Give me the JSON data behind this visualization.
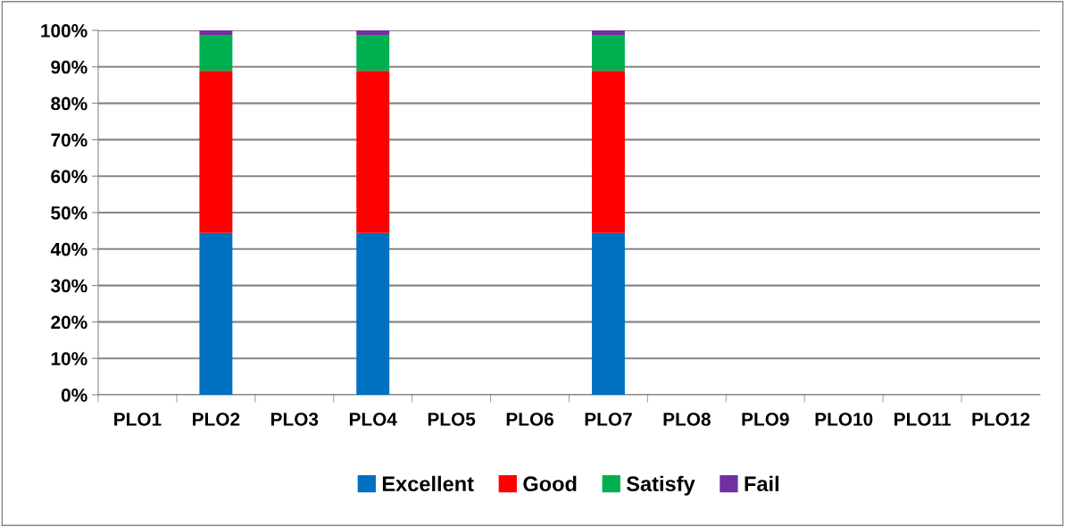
{
  "chart_data": {
    "type": "bar",
    "stacked": true,
    "categories": [
      "PLO1",
      "PLO2",
      "PLO3",
      "PLO4",
      "PLO5",
      "PLO6",
      "PLO7",
      "PLO8",
      "PLO9",
      "PLO10",
      "PLO11",
      "PLO12"
    ],
    "series": [
      {
        "name": "Excellent",
        "color": "#0070c0",
        "values": [
          null,
          44.4,
          null,
          44.4,
          null,
          null,
          44.4,
          null,
          null,
          null,
          null,
          null
        ]
      },
      {
        "name": "Good",
        "color": "#ff0000",
        "values": [
          null,
          44.5,
          null,
          44.5,
          null,
          null,
          44.5,
          null,
          null,
          null,
          null,
          null
        ]
      },
      {
        "name": "Satisfy",
        "color": "#00b050",
        "values": [
          null,
          9.7,
          null,
          9.7,
          null,
          null,
          9.7,
          null,
          null,
          null,
          null,
          null
        ]
      },
      {
        "name": "Fail",
        "color": "#7030a0",
        "values": [
          null,
          1.4,
          null,
          1.4,
          null,
          null,
          1.4,
          null,
          null,
          null,
          null,
          null
        ]
      }
    ],
    "ylim": [
      0,
      100
    ],
    "yticks": [
      {
        "value": 0,
        "label": "0%"
      },
      {
        "value": 10,
        "label": "10%"
      },
      {
        "value": 20,
        "label": "20%"
      },
      {
        "value": 30,
        "label": "30%"
      },
      {
        "value": 40,
        "label": "40%"
      },
      {
        "value": 50,
        "label": "50%"
      },
      {
        "value": 60,
        "label": "60%"
      },
      {
        "value": 70,
        "label": "70%"
      },
      {
        "value": 80,
        "label": "80%"
      },
      {
        "value": 90,
        "label": "90%"
      },
      {
        "value": 100,
        "label": "100%"
      }
    ],
    "grid": "y",
    "legend": "bottom"
  }
}
